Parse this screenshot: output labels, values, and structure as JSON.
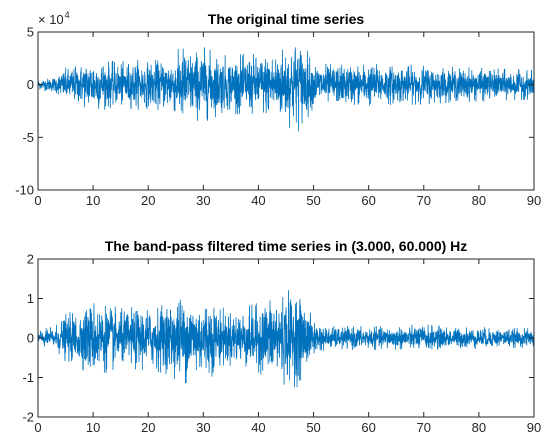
{
  "chart_data": [
    {
      "type": "line",
      "title": "The original time series",
      "xlabel": "",
      "ylabel": "",
      "xlim": [
        0,
        90
      ],
      "ylim": [
        -10,
        5
      ],
      "y_exponent_label": "× 10",
      "y_exponent_power": "4",
      "x_ticks": [
        0,
        10,
        20,
        30,
        40,
        50,
        60,
        70,
        80,
        90
      ],
      "y_ticks": [
        -10,
        -5,
        0,
        5
      ],
      "x_tick_labels": [
        "0",
        "10",
        "20",
        "30",
        "40",
        "50",
        "60",
        "70",
        "80",
        "90"
      ],
      "y_tick_labels": [
        "-10",
        "-5",
        "0",
        "5"
      ],
      "grid": false,
      "series_color": "#0072BD",
      "envelope": {
        "t": [
          0,
          3,
          5,
          8,
          10,
          13,
          15,
          18,
          20,
          23,
          25,
          26,
          28,
          30,
          33,
          35,
          38,
          40,
          43,
          45,
          47,
          48,
          50,
          52,
          55,
          60,
          65,
          70,
          75,
          80,
          85,
          90
        ],
        "amp": [
          0.5,
          0.8,
          1.6,
          2.1,
          2.6,
          2.3,
          2.2,
          2.4,
          2.3,
          2.5,
          2.9,
          4.0,
          3.3,
          3.6,
          2.9,
          2.7,
          3.0,
          2.9,
          3.3,
          3.9,
          4.6,
          4.0,
          2.2,
          2.0,
          2.0,
          2.1,
          1.9,
          1.9,
          1.7,
          1.6,
          1.5,
          1.4
        ]
      }
    },
    {
      "type": "line",
      "title": "The band-pass filtered time series in (3.000, 60.000) Hz",
      "xlabel": "",
      "ylabel": "",
      "xlim": [
        0,
        90
      ],
      "ylim": [
        -2,
        2
      ],
      "x_ticks": [
        0,
        10,
        20,
        30,
        40,
        50,
        60,
        70,
        80,
        90
      ],
      "y_ticks": [
        -2,
        -1,
        0,
        1,
        2
      ],
      "x_tick_labels": [
        "0",
        "10",
        "20",
        "30",
        "40",
        "50",
        "60",
        "70",
        "80",
        "90"
      ],
      "y_tick_labels": [
        "-2",
        "-1",
        "0",
        "1",
        "2"
      ],
      "grid": false,
      "series_color": "#0072BD",
      "envelope": {
        "t": [
          0,
          3,
          5,
          8,
          10,
          12,
          15,
          18,
          20,
          23,
          25,
          27,
          29,
          31,
          33,
          35,
          38,
          40,
          43,
          45,
          47,
          48,
          50,
          52,
          55,
          60,
          65,
          70,
          75,
          80,
          85,
          90
        ],
        "amp": [
          0.2,
          0.3,
          0.6,
          0.8,
          1.0,
          0.9,
          0.75,
          0.8,
          0.8,
          0.9,
          1.05,
          1.15,
          1.0,
          1.05,
          0.8,
          0.7,
          0.8,
          0.9,
          1.1,
          1.2,
          1.25,
          1.0,
          0.5,
          0.3,
          0.3,
          0.3,
          0.3,
          0.35,
          0.28,
          0.28,
          0.25,
          0.25
        ]
      }
    }
  ]
}
